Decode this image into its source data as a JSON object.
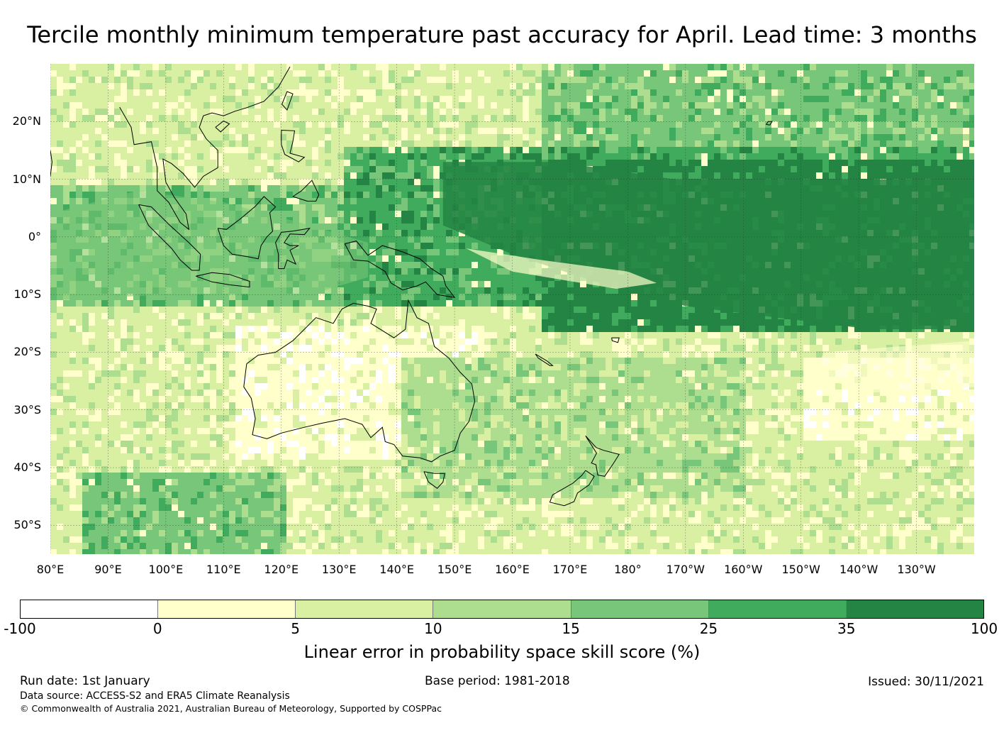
{
  "title": "Tercile monthly minimum temperature past accuracy for April. Lead time: 3 months",
  "map": {
    "lon_range": [
      80,
      240
    ],
    "lat_range": [
      -55,
      30
    ],
    "lat_ticks": [
      "20°N",
      "10°N",
      "0°",
      "10°S",
      "20°S",
      "30°S",
      "40°S",
      "50°S"
    ],
    "lat_tick_values": [
      20,
      10,
      0,
      -10,
      -20,
      -30,
      -40,
      -50
    ],
    "lon_ticks": [
      "80°E",
      "90°E",
      "100°E",
      "110°E",
      "120°E",
      "130°E",
      "140°E",
      "150°E",
      "160°E",
      "170°E",
      "180°",
      "170°W",
      "160°W",
      "150°W",
      "140°W",
      "130°W"
    ],
    "lon_tick_values": [
      80,
      90,
      100,
      110,
      120,
      130,
      140,
      150,
      160,
      170,
      180,
      190,
      200,
      210,
      220,
      230
    ],
    "gridlines": true,
    "coastline_color": "#000000"
  },
  "colorbar": {
    "label": "Linear error in probability space skill score (%)",
    "ticks": [
      "-100",
      "0",
      "5",
      "10",
      "15",
      "25",
      "35",
      "100"
    ],
    "colors": [
      "#ffffff",
      "#ffffcc",
      "#d9f0a3",
      "#addd8e",
      "#78c679",
      "#41ab5d",
      "#238443"
    ]
  },
  "footer": {
    "run_date": "Run date: 1st January",
    "base_period": "Base period: 1981-2018",
    "issued": "Issued: 30/11/2021",
    "data_source": "Data source: ACCESS-S2 and ERA5 Climate Reanalysis",
    "copyright": "© Commonwealth of Australia 2021, Australian Bureau of Meteorology, Supported by COSPPac"
  }
}
